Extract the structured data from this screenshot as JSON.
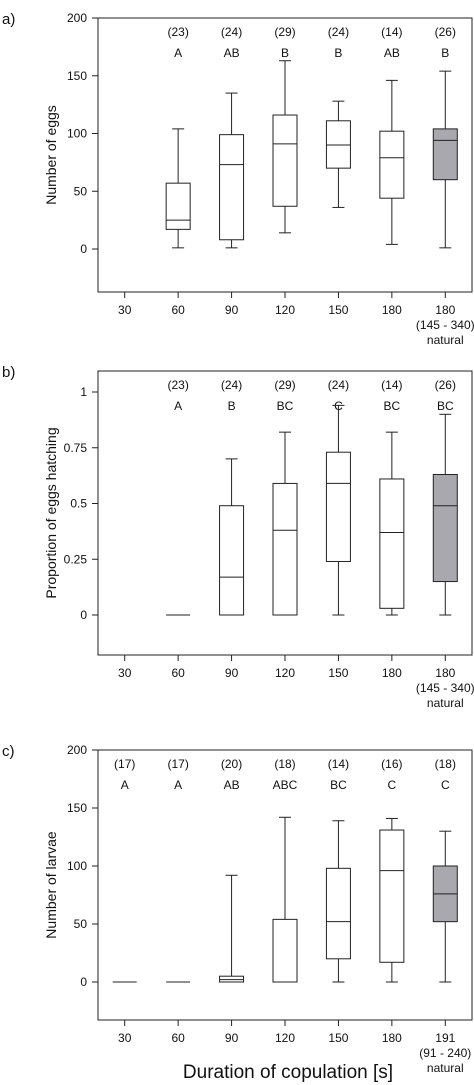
{
  "xlabel": "Duration of copulation [s]",
  "colors": {
    "box_default": "#ffffff",
    "box_natural": "#a8a8ae",
    "stroke": "#222222"
  },
  "chart_data": [
    {
      "panel_label": "a)",
      "type": "boxplot",
      "ylabel": "Number of eggs",
      "ylim": [
        -20,
        200
      ],
      "yticks": [
        "0",
        "50",
        "100",
        "150",
        "200"
      ],
      "ytick_values": [
        0,
        50,
        100,
        150,
        200
      ],
      "categories": [
        "30",
        "60",
        "90",
        "120",
        "150",
        "180",
        "180"
      ],
      "category_sublabels": [
        "",
        "",
        "",
        "",
        "",
        "",
        "(145 - 340)"
      ],
      "category_sublabels2": [
        "",
        "",
        "",
        "",
        "",
        "",
        "natural"
      ],
      "n": [
        "",
        "(23)",
        "(24)",
        "(29)",
        "(24)",
        "(14)",
        "(26)"
      ],
      "groups": [
        "",
        "A",
        "AB",
        "B",
        "B",
        "AB",
        "B"
      ],
      "boxes": [
        null,
        {
          "min": 1,
          "q1": 17,
          "median": 25,
          "q3": 57,
          "max": 104,
          "natural": false
        },
        {
          "min": 1,
          "q1": 8,
          "median": 73,
          "q3": 99,
          "max": 135,
          "natural": false
        },
        {
          "min": 14,
          "q1": 37,
          "median": 91,
          "q3": 116,
          "max": 163,
          "natural": false
        },
        {
          "min": 36,
          "q1": 70,
          "median": 90,
          "q3": 111,
          "max": 128,
          "natural": false
        },
        {
          "min": 4,
          "q1": 44,
          "median": 79,
          "q3": 102,
          "max": 146,
          "natural": false
        },
        {
          "min": 1,
          "q1": 60,
          "median": 94,
          "q3": 104,
          "max": 154,
          "natural": true
        }
      ]
    },
    {
      "panel_label": "b)",
      "type": "boxplot",
      "ylabel": "Proportion of eggs hatching",
      "ylim": [
        -0.12,
        1.15
      ],
      "yticks": [
        "0",
        "0.25",
        "0.5",
        "0.75",
        "1"
      ],
      "ytick_values": [
        0,
        0.25,
        0.5,
        0.75,
        1
      ],
      "categories": [
        "30",
        "60",
        "90",
        "120",
        "150",
        "180",
        "180"
      ],
      "category_sublabels": [
        "",
        "",
        "",
        "",
        "",
        "",
        "(145 - 340)"
      ],
      "category_sublabels2": [
        "",
        "",
        "",
        "",
        "",
        "",
        "natural"
      ],
      "n": [
        "",
        "(23)",
        "(24)",
        "(29)",
        "(24)",
        "(14)",
        "(26)"
      ],
      "groups": [
        "",
        "A",
        "B",
        "BC",
        "C",
        "BC",
        "BC"
      ],
      "boxes": [
        null,
        {
          "min": 0,
          "q1": 0,
          "median": 0,
          "q3": 0,
          "max": 0,
          "natural": false
        },
        {
          "min": 0,
          "q1": 0,
          "median": 0.17,
          "q3": 0.49,
          "max": 0.7,
          "natural": false
        },
        {
          "min": 0,
          "q1": 0,
          "median": 0.38,
          "q3": 0.59,
          "max": 0.82,
          "natural": false
        },
        {
          "min": 0,
          "q1": 0.24,
          "median": 0.59,
          "q3": 0.73,
          "max": 0.94,
          "natural": false
        },
        {
          "min": 0,
          "q1": 0.03,
          "median": 0.37,
          "q3": 0.61,
          "max": 0.82,
          "natural": false
        },
        {
          "min": 0,
          "q1": 0.15,
          "median": 0.49,
          "q3": 0.63,
          "max": 0.9,
          "natural": true
        }
      ]
    },
    {
      "panel_label": "c)",
      "type": "boxplot",
      "ylabel": "Number of larvae",
      "ylim": [
        -20,
        200
      ],
      "yticks": [
        "0",
        "50",
        "100",
        "150",
        "200"
      ],
      "ytick_values": [
        0,
        50,
        100,
        150,
        200
      ],
      "categories": [
        "30",
        "60",
        "90",
        "120",
        "150",
        "180",
        "191"
      ],
      "category_sublabels": [
        "",
        "",
        "",
        "",
        "",
        "",
        "(91 - 240)"
      ],
      "category_sublabels2": [
        "",
        "",
        "",
        "",
        "",
        "",
        "natural"
      ],
      "n": [
        "(17)",
        "(17)",
        "(20)",
        "(18)",
        "(14)",
        "(16)",
        "(18)"
      ],
      "groups": [
        "A",
        "A",
        "AB",
        "ABC",
        "BC",
        "C",
        "C"
      ],
      "boxes": [
        {
          "min": 0,
          "q1": 0,
          "median": 0,
          "q3": 0,
          "max": 0,
          "natural": false
        },
        {
          "min": 0,
          "q1": 0,
          "median": 0,
          "q3": 0,
          "max": 0,
          "natural": false
        },
        {
          "min": 0,
          "q1": 0,
          "median": 2,
          "q3": 5,
          "max": 92,
          "natural": false
        },
        {
          "min": 0,
          "q1": 0,
          "median": 0,
          "q3": 54,
          "max": 142,
          "natural": false
        },
        {
          "min": 0,
          "q1": 20,
          "median": 52,
          "q3": 98,
          "max": 139,
          "natural": false
        },
        {
          "min": 0,
          "q1": 17,
          "median": 96,
          "q3": 131,
          "max": 141,
          "natural": false
        },
        {
          "min": 0,
          "q1": 52,
          "median": 76,
          "q3": 100,
          "max": 130,
          "natural": true
        }
      ]
    }
  ]
}
